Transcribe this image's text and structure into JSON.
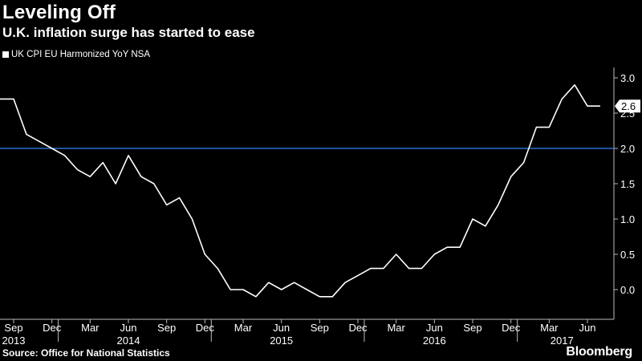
{
  "header": {
    "title": "Leveling Off",
    "subtitle": "U.K. inflation surge has started to ease"
  },
  "footer": {
    "source": "Source: Office for National Statistics",
    "brand": "Bloomberg"
  },
  "colors": {
    "background": "#000000",
    "series": "#ffffff",
    "reference": "#2f6fd0",
    "axis": "#bbbbbb"
  },
  "chart_data": {
    "type": "line",
    "series": [
      {
        "name": "UK CPI EU Harmonized YoY NSA",
        "color": "#ffffff",
        "points": [
          [
            "2013-08",
            2.7
          ],
          [
            "2013-09",
            2.7
          ],
          [
            "2013-10",
            2.2
          ],
          [
            "2013-11",
            2.1
          ],
          [
            "2013-12",
            2.0
          ],
          [
            "2014-01",
            1.9
          ],
          [
            "2014-02",
            1.7
          ],
          [
            "2014-03",
            1.6
          ],
          [
            "2014-04",
            1.8
          ],
          [
            "2014-05",
            1.5
          ],
          [
            "2014-06",
            1.9
          ],
          [
            "2014-07",
            1.6
          ],
          [
            "2014-08",
            1.5
          ],
          [
            "2014-09",
            1.2
          ],
          [
            "2014-10",
            1.3
          ],
          [
            "2014-11",
            1.0
          ],
          [
            "2014-12",
            0.5
          ],
          [
            "2015-01",
            0.3
          ],
          [
            "2015-02",
            0.0
          ],
          [
            "2015-03",
            0.0
          ],
          [
            "2015-04",
            -0.1
          ],
          [
            "2015-05",
            0.1
          ],
          [
            "2015-06",
            0.0
          ],
          [
            "2015-07",
            0.1
          ],
          [
            "2015-08",
            0.0
          ],
          [
            "2015-09",
            -0.1
          ],
          [
            "2015-10",
            -0.1
          ],
          [
            "2015-11",
            0.1
          ],
          [
            "2015-12",
            0.2
          ],
          [
            "2016-01",
            0.3
          ],
          [
            "2016-02",
            0.3
          ],
          [
            "2016-03",
            0.5
          ],
          [
            "2016-04",
            0.3
          ],
          [
            "2016-05",
            0.3
          ],
          [
            "2016-06",
            0.5
          ],
          [
            "2016-07",
            0.6
          ],
          [
            "2016-08",
            0.6
          ],
          [
            "2016-09",
            1.0
          ],
          [
            "2016-10",
            0.9
          ],
          [
            "2016-11",
            1.2
          ],
          [
            "2016-12",
            1.6
          ],
          [
            "2017-01",
            1.8
          ],
          [
            "2017-02",
            2.3
          ],
          [
            "2017-03",
            2.3
          ],
          [
            "2017-04",
            2.7
          ],
          [
            "2017-05",
            2.9
          ],
          [
            "2017-06",
            2.6
          ],
          [
            "2017-07",
            2.6
          ]
        ]
      }
    ],
    "reference_line": {
      "value": 2.0,
      "color": "#2f6fd0"
    },
    "last_value_label": "2.6",
    "ylim": [
      -0.2,
      3.15
    ],
    "y_ticks": [
      "3.0",
      "2.5",
      "2.0",
      "1.5",
      "1.0",
      "0.5",
      "0.0"
    ],
    "x_ticks": [
      {
        "date": "2013-09",
        "label": "Sep"
      },
      {
        "date": "2013-12",
        "label": "Dec"
      },
      {
        "date": "2014-03",
        "label": "Mar"
      },
      {
        "date": "2014-06",
        "label": "Jun"
      },
      {
        "date": "2014-09",
        "label": "Sep"
      },
      {
        "date": "2014-12",
        "label": "Dec"
      },
      {
        "date": "2015-03",
        "label": "Mar"
      },
      {
        "date": "2015-06",
        "label": "Jun"
      },
      {
        "date": "2015-09",
        "label": "Sep"
      },
      {
        "date": "2015-12",
        "label": "Dec"
      },
      {
        "date": "2016-03",
        "label": "Mar"
      },
      {
        "date": "2016-06",
        "label": "Jun"
      },
      {
        "date": "2016-09",
        "label": "Sep"
      },
      {
        "date": "2016-12",
        "label": "Dec"
      },
      {
        "date": "2017-03",
        "label": "Mar"
      },
      {
        "date": "2017-06",
        "label": "Jun"
      }
    ],
    "year_labels": [
      {
        "date": "2013-09",
        "label": "2013"
      },
      {
        "date": "2014-06",
        "label": "2014"
      },
      {
        "date": "2015-06",
        "label": "2015"
      },
      {
        "date": "2016-06",
        "label": "2016"
      },
      {
        "date": "2017-04",
        "label": "2017"
      }
    ],
    "x_range": [
      "2013-08",
      "2017-09"
    ],
    "legend_position": "top-left",
    "grid": false
  }
}
